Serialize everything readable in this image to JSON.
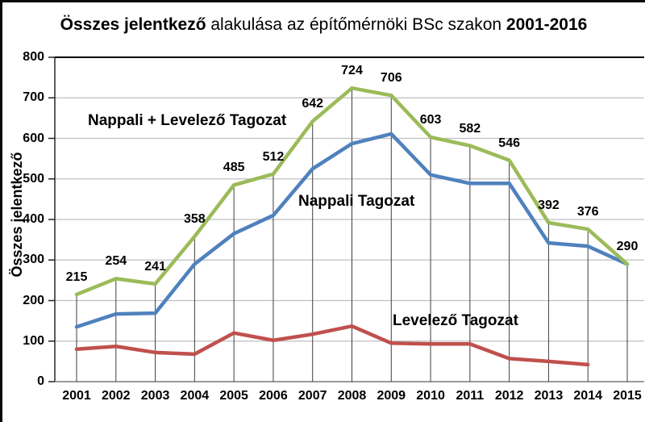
{
  "title": {
    "bold_prefix": "Összes jelentkező",
    "middle": " alakulása az építőmérnöki BSc szakon ",
    "bold_suffix": "2001-2016"
  },
  "chart_data": {
    "type": "line",
    "title": "Összes jelentkező alakulása az építőmérnöki BSc szakon 2001-2016",
    "xlabel": "",
    "ylabel": "Összes jelentkező",
    "ylim": [
      0,
      800
    ],
    "y_tick_step": 100,
    "grid": true,
    "drop_lines": true,
    "legend_position": "inline-annotations",
    "categories": [
      "2001",
      "2002",
      "2003",
      "2004",
      "2005",
      "2006",
      "2007",
      "2008",
      "2009",
      "2010",
      "2011",
      "2012",
      "2013",
      "2014",
      "2015"
    ],
    "series": [
      {
        "name": "Nappali + Levelező Tagozat",
        "color": "#9BBB59",
        "values": [
          215,
          254,
          241,
          358,
          485,
          512,
          642,
          724,
          706,
          603,
          582,
          546,
          392,
          376,
          290
        ],
        "data_labels": [
          "215",
          "254",
          "241",
          "358",
          "485",
          "512",
          "642",
          "724",
          "706",
          "603",
          "582",
          "546",
          "392",
          "376",
          "290"
        ]
      },
      {
        "name": "Nappali Tagozat",
        "color": "#4F81BD",
        "values": [
          135,
          167,
          169,
          290,
          365,
          410,
          525,
          587,
          611,
          510,
          489,
          489,
          342,
          334,
          290
        ],
        "data_labels": null
      },
      {
        "name": "Levelező Tagozat",
        "color": "#C0504D",
        "values": [
          80,
          87,
          72,
          68,
          120,
          102,
          117,
          137,
          95,
          93,
          93,
          57,
          50,
          42,
          null
        ],
        "data_labels": null
      }
    ],
    "colors": {
      "gridline": "#BFBFBF",
      "top_gridline": "#000000",
      "axis_left": "#262626",
      "axis_bottom": "#7F7F7F",
      "drop_line": "#3F3F3F",
      "text": "#000000"
    }
  }
}
